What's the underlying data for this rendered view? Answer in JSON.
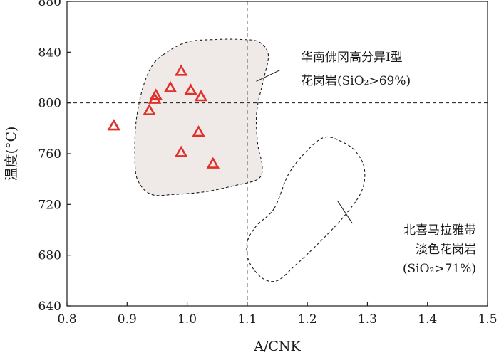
{
  "chart_data": {
    "type": "scatter",
    "xlabel": "A/CNK",
    "ylabel": "温度(°C)",
    "xlim": [
      0.8,
      1.5
    ],
    "ylim": [
      640,
      880
    ],
    "x_ticks": [
      0.8,
      0.9,
      1.0,
      1.1,
      1.2,
      1.3,
      1.4,
      1.5
    ],
    "x_tick_labels": [
      "0.8",
      "0.9",
      "1.0",
      "1.1",
      "1.2",
      "1.3",
      "1.4",
      "1.5"
    ],
    "y_ticks": [
      640,
      680,
      720,
      760,
      800,
      840,
      880
    ],
    "y_tick_labels": [
      "640",
      "680",
      "720",
      "760",
      "800",
      "840",
      "880"
    ],
    "grid": false,
    "reference_lines": {
      "x": 1.1,
      "y": 800
    },
    "series": [
      {
        "marker": "triangle-open",
        "color": "#e0302a",
        "points": [
          {
            "x": 0.878,
            "y": 782
          },
          {
            "x": 0.937,
            "y": 794
          },
          {
            "x": 0.946,
            "y": 803
          },
          {
            "x": 0.948,
            "y": 806
          },
          {
            "x": 0.972,
            "y": 812
          },
          {
            "x": 0.99,
            "y": 825
          },
          {
            "x": 1.006,
            "y": 810
          },
          {
            "x": 1.023,
            "y": 805
          },
          {
            "x": 1.019,
            "y": 777
          },
          {
            "x": 0.99,
            "y": 761
          },
          {
            "x": 1.043,
            "y": 752
          }
        ]
      }
    ],
    "regions": [
      {
        "fill": "#efeae8",
        "label_lines": [
          "华南佛冈高分异I型",
          "花岗岩(SiO₂>69%)"
        ],
        "boundary": [
          [
            0.96,
            838
          ],
          [
            1.0,
            848
          ],
          [
            1.05,
            850
          ],
          [
            1.09,
            850
          ],
          [
            1.12,
            848
          ],
          [
            1.135,
            838
          ],
          [
            1.128,
            820
          ],
          [
            1.118,
            800
          ],
          [
            1.115,
            785
          ],
          [
            1.118,
            766
          ],
          [
            1.125,
            750
          ],
          [
            1.118,
            740
          ],
          [
            1.08,
            735
          ],
          [
            1.03,
            730
          ],
          [
            0.98,
            728
          ],
          [
            0.94,
            728
          ],
          [
            0.917,
            740
          ],
          [
            0.913,
            760
          ],
          [
            0.915,
            785
          ],
          [
            0.925,
            810
          ],
          [
            0.94,
            828
          ]
        ]
      },
      {
        "fill": "none",
        "label_lines": [
          "北喜马拉雅带",
          "淡色花岗岩",
          "(SiO₂>71%)"
        ],
        "boundary": [
          [
            1.145,
            717
          ],
          [
            1.17,
            745
          ],
          [
            1.205,
            765
          ],
          [
            1.23,
            773
          ],
          [
            1.255,
            770
          ],
          [
            1.28,
            762
          ],
          [
            1.295,
            748
          ],
          [
            1.29,
            730
          ],
          [
            1.26,
            710
          ],
          [
            1.22,
            690
          ],
          [
            1.18,
            672
          ],
          [
            1.15,
            660
          ],
          [
            1.125,
            662
          ],
          [
            1.103,
            675
          ],
          [
            1.1,
            690
          ],
          [
            1.115,
            703
          ]
        ]
      }
    ]
  }
}
